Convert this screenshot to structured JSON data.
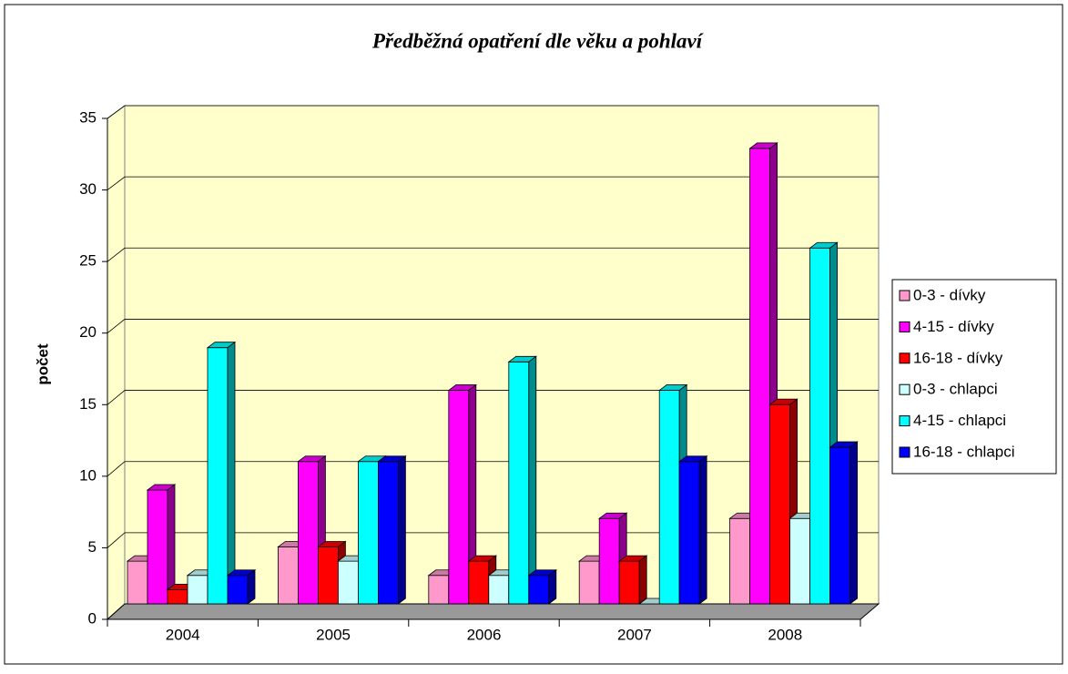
{
  "chart_data": {
    "type": "bar3d",
    "title": "Předběžná opatření dle věku a pohlaví",
    "y_label": "počet",
    "categories": [
      "2004",
      "2005",
      "2006",
      "2007",
      "2008"
    ],
    "series": [
      {
        "name": "0-3 - dívky",
        "color": "#ff99cc",
        "values": [
          3,
          4,
          2,
          3,
          6
        ]
      },
      {
        "name": "4-15 - dívky",
        "color": "#ff00ff",
        "values": [
          8,
          10,
          15,
          6,
          32
        ]
      },
      {
        "name": "16-18 - dívky",
        "color": "#ff0000",
        "values": [
          1,
          4,
          3,
          3,
          14
        ]
      },
      {
        "name": "0-3 - chlapci",
        "color": "#ccffff",
        "values": [
          2,
          3,
          2,
          0,
          6
        ]
      },
      {
        "name": "4-15 - chlapci",
        "color": "#00ffff",
        "values": [
          18,
          10,
          17,
          15,
          25
        ]
      },
      {
        "name": "16-18 - chlapci",
        "color": "#0000ff",
        "values": [
          2,
          10,
          2,
          10,
          11
        ]
      }
    ],
    "ylim": [
      0,
      35
    ],
    "yticks": [
      0,
      5,
      10,
      15,
      20,
      25,
      30,
      35
    ],
    "grid": true,
    "legend": "right"
  }
}
